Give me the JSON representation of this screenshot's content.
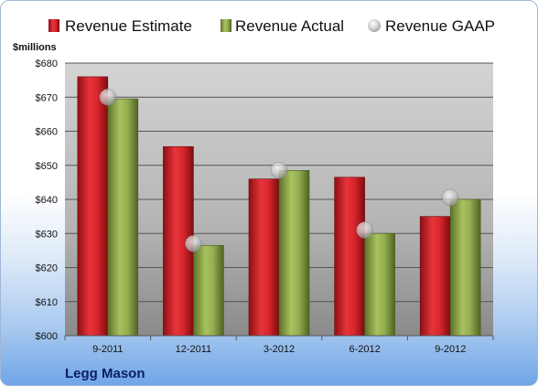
{
  "chart_data": {
    "type": "bar",
    "company": "Legg Mason",
    "unit_label": "$millions",
    "categories": [
      "9-2011",
      "12-2011",
      "3-2012",
      "6-2012",
      "9-2012"
    ],
    "series": [
      {
        "name": "Revenue Estimate",
        "kind": "bar",
        "color": "#cc1f25",
        "values": [
          676,
          655.5,
          646,
          646.5,
          635
        ]
      },
      {
        "name": "Revenue Actual",
        "kind": "bar",
        "color": "#8aa34a",
        "values": [
          669.5,
          626.5,
          648.5,
          630,
          640
        ]
      },
      {
        "name": "Revenue GAAP",
        "kind": "marker",
        "color": "#b8b8b8",
        "values": [
          670,
          627,
          648.5,
          631,
          640.5
        ]
      }
    ],
    "ylim": [
      600,
      680
    ],
    "yticks": [
      "$600",
      "$610",
      "$620",
      "$630",
      "$640",
      "$650",
      "$660",
      "$670",
      "$680"
    ],
    "grid": true,
    "legend_position": "top"
  }
}
